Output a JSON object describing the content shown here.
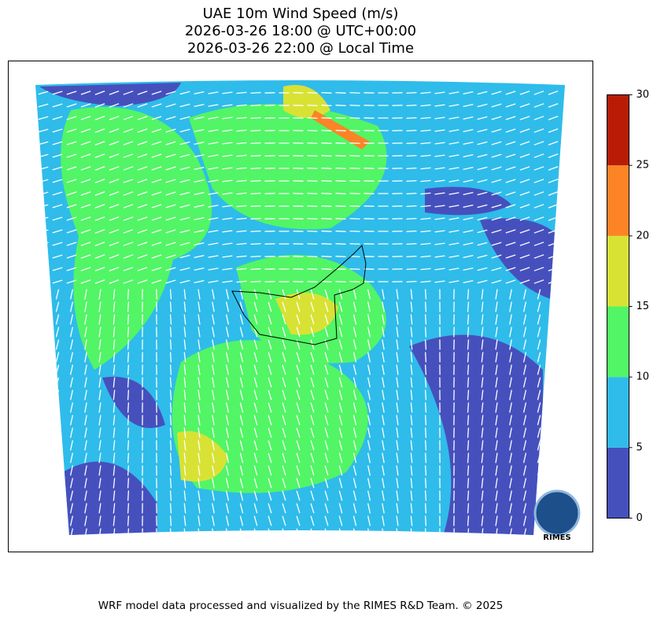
{
  "chart_data": {
    "type": "map",
    "title": [
      "UAE 10m Wind Speed (m/s)",
      "2026-03-26 18:00 @ UTC+00:00",
      "2026-03-26 22:00 @ Local Time"
    ],
    "colorbar": {
      "lim": [
        0,
        30
      ],
      "ticks": [
        0,
        5,
        10,
        15,
        20,
        25,
        30
      ],
      "colors": [
        "#4650bd",
        "#2fbcea",
        "#52f565",
        "#d8e234",
        "#fc8426",
        "#b81c06"
      ]
    },
    "logo_text": "RIMES",
    "footer": "WRF model data processed and visualized by the RIMES R&D Team. © 2025"
  }
}
